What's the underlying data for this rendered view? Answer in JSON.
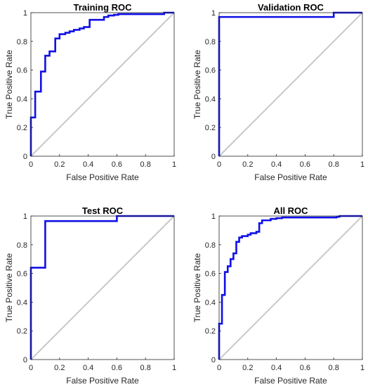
{
  "colors": {
    "roc": "#1010e6",
    "diagonal": "#c8c8c8"
  },
  "chart_data": [
    {
      "type": "line",
      "title": "Training ROC",
      "xlabel": "False Positive Rate",
      "ylabel": "True Positive Rate",
      "xlim": [
        0,
        1
      ],
      "ylim": [
        0,
        1
      ],
      "xticks": [
        "0",
        "0.2",
        "0.4",
        "0.6",
        "0.8",
        "1"
      ],
      "yticks": [
        "0",
        "0.2",
        "0.4",
        "0.6",
        "0.8",
        "1"
      ],
      "grid": false,
      "series": [
        {
          "x": [
            0,
            0,
            0.03,
            0.03,
            0.07,
            0.07,
            0.1,
            0.1,
            0.13,
            0.13,
            0.17,
            0.17,
            0.2,
            0.2,
            0.24,
            0.24,
            0.27,
            0.27,
            0.3,
            0.3,
            0.34,
            0.34,
            0.37,
            0.37,
            0.41,
            0.41,
            0.51,
            0.51,
            0.54,
            0.54,
            0.58,
            0.58,
            0.61,
            0.61,
            0.93,
            0.93,
            1
          ],
          "y": [
            0,
            0.27,
            0.27,
            0.45,
            0.45,
            0.59,
            0.59,
            0.7,
            0.7,
            0.73,
            0.73,
            0.82,
            0.82,
            0.85,
            0.85,
            0.86,
            0.86,
            0.87,
            0.87,
            0.88,
            0.88,
            0.89,
            0.89,
            0.9,
            0.9,
            0.95,
            0.95,
            0.97,
            0.97,
            0.98,
            0.98,
            0.985,
            0.985,
            0.99,
            0.99,
            1.0,
            1.0
          ]
        },
        {
          "x": [
            0,
            1
          ],
          "y": [
            0,
            1
          ]
        }
      ]
    },
    {
      "type": "line",
      "title": "Validation ROC",
      "xlabel": "False Positive Rate",
      "ylabel": "True Positive Rate",
      "xlim": [
        0,
        1
      ],
      "ylim": [
        0,
        1
      ],
      "xticks": [
        "0",
        "0.2",
        "0.4",
        "0.6",
        "0.8",
        "1"
      ],
      "yticks": [
        "0",
        "0.2",
        "0.4",
        "0.6",
        "0.8",
        "1"
      ],
      "grid": false,
      "series": [
        {
          "x": [
            0,
            0,
            0.8,
            0.8,
            1
          ],
          "y": [
            0,
            0.97,
            0.97,
            1.0,
            1.0
          ]
        },
        {
          "x": [
            0,
            1
          ],
          "y": [
            0,
            1
          ]
        }
      ]
    },
    {
      "type": "line",
      "title": "Test ROC",
      "xlabel": "False Positive Rate",
      "ylabel": "True Positive Rate",
      "xlim": [
        0,
        1
      ],
      "ylim": [
        0,
        1
      ],
      "xticks": [
        "0",
        "0.2",
        "0.4",
        "0.6",
        "0.8",
        "1"
      ],
      "yticks": [
        "0",
        "0.2",
        "0.4",
        "0.6",
        "0.8",
        "1"
      ],
      "grid": false,
      "series": [
        {
          "x": [
            0,
            0,
            0.1,
            0.1,
            0.6,
            0.6,
            1
          ],
          "y": [
            0,
            0.64,
            0.64,
            0.965,
            0.965,
            1.0,
            1.0
          ]
        },
        {
          "x": [
            0,
            1
          ],
          "y": [
            0,
            1
          ]
        }
      ]
    },
    {
      "type": "line",
      "title": "All ROC",
      "xlabel": "False Positive Rate",
      "ylabel": "True Positive Rate",
      "xlim": [
        0,
        1
      ],
      "ylim": [
        0,
        1
      ],
      "xticks": [
        "0",
        "0.2",
        "0.4",
        "0.6",
        "0.8",
        "1"
      ],
      "yticks": [
        "0",
        "0.2",
        "0.4",
        "0.6",
        "0.8",
        "1"
      ],
      "grid": false,
      "series": [
        {
          "x": [
            0,
            0,
            0.02,
            0.02,
            0.04,
            0.04,
            0.06,
            0.06,
            0.08,
            0.08,
            0.1,
            0.1,
            0.12,
            0.12,
            0.14,
            0.14,
            0.16,
            0.16,
            0.2,
            0.2,
            0.22,
            0.22,
            0.26,
            0.26,
            0.28,
            0.28,
            0.3,
            0.3,
            0.36,
            0.36,
            0.4,
            0.4,
            0.44,
            0.44,
            0.82,
            0.82,
            0.84,
            0.84,
            0.86,
            0.86,
            1
          ],
          "y": [
            0,
            0.25,
            0.25,
            0.45,
            0.45,
            0.61,
            0.61,
            0.65,
            0.65,
            0.7,
            0.7,
            0.74,
            0.74,
            0.82,
            0.82,
            0.85,
            0.85,
            0.86,
            0.86,
            0.87,
            0.87,
            0.88,
            0.88,
            0.89,
            0.89,
            0.95,
            0.95,
            0.97,
            0.97,
            0.98,
            0.98,
            0.985,
            0.985,
            0.99,
            0.99,
            0.995,
            0.995,
            1.0,
            1.0,
            1.0,
            1.0
          ]
        },
        {
          "x": [
            0,
            1
          ],
          "y": [
            0,
            1
          ]
        }
      ]
    }
  ]
}
